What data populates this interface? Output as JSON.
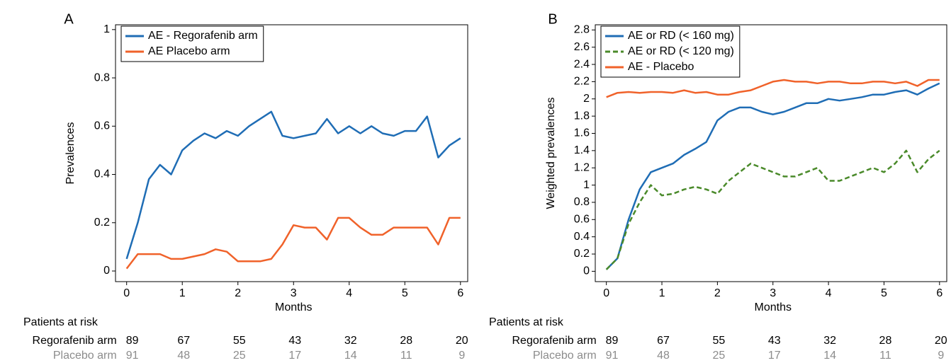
{
  "chart_data": [
    {
      "type": "line",
      "panel": "A",
      "ylabel": "Prevalences",
      "xlabel": "Months",
      "xlim": [
        -0.2,
        6.13
      ],
      "ylim": [
        -0.044,
        1.02
      ],
      "xticks": [
        0,
        1,
        2,
        3,
        4,
        5,
        6
      ],
      "yticks": [
        0,
        0.2,
        0.4,
        0.6,
        0.8,
        1
      ],
      "legend": "top-left",
      "x": [
        0,
        0.2,
        0.4,
        0.6,
        0.8,
        1.0,
        1.2,
        1.4,
        1.6,
        1.8,
        2.0,
        2.2,
        2.4,
        2.6,
        2.8,
        3.0,
        3.2,
        3.4,
        3.6,
        3.8,
        4.0,
        4.2,
        4.4,
        4.6,
        4.8,
        5.0,
        5.2,
        5.4,
        5.6,
        5.8,
        6.0
      ],
      "series": [
        {
          "name": "AE - Regorafenib arm",
          "color": "#1f6db5",
          "dash": false,
          "values": [
            0.05,
            0.2,
            0.38,
            0.44,
            0.4,
            0.5,
            0.54,
            0.57,
            0.55,
            0.58,
            0.56,
            0.6,
            0.63,
            0.66,
            0.56,
            0.55,
            0.56,
            0.57,
            0.63,
            0.57,
            0.6,
            0.57,
            0.6,
            0.57,
            0.56,
            0.58,
            0.58,
            0.64,
            0.47,
            0.52,
            0.55
          ]
        },
        {
          "name": "AE Placebo arm",
          "color": "#f0622a",
          "dash": false,
          "values": [
            0.01,
            0.07,
            0.07,
            0.07,
            0.05,
            0.05,
            0.06,
            0.07,
            0.09,
            0.08,
            0.04,
            0.04,
            0.04,
            0.05,
            0.11,
            0.19,
            0.18,
            0.18,
            0.13,
            0.22,
            0.22,
            0.18,
            0.15,
            0.15,
            0.18,
            0.18,
            0.18,
            0.18,
            0.11,
            0.22,
            0.22
          ]
        }
      ],
      "risk_table": {
        "title": "Patients at risk",
        "rows": [
          {
            "name": "Regorafenib arm",
            "color": "#000000",
            "values": [
              89,
              67,
              55,
              43,
              32,
              28,
              20
            ]
          },
          {
            "name": "Placebo arm",
            "color": "#8c8c8c",
            "values": [
              91,
              48,
              25,
              17,
              14,
              11,
              9
            ]
          }
        ]
      }
    },
    {
      "type": "line",
      "panel": "B",
      "ylabel": "Weighted prevalences",
      "xlabel": "Months",
      "xlim": [
        -0.2,
        6.13
      ],
      "ylim": [
        -0.12,
        2.86
      ],
      "xticks": [
        0,
        1,
        2,
        3,
        4,
        5,
        6
      ],
      "yticks": [
        0,
        0.2,
        0.4,
        0.6,
        0.8,
        1,
        1.2,
        1.4,
        1.6,
        1.8,
        2,
        2.2,
        2.4,
        2.6,
        2.8
      ],
      "legend": "top-left",
      "x": [
        0,
        0.2,
        0.4,
        0.6,
        0.8,
        1.0,
        1.2,
        1.4,
        1.6,
        1.8,
        2.0,
        2.2,
        2.4,
        2.6,
        2.8,
        3.0,
        3.2,
        3.4,
        3.6,
        3.8,
        4.0,
        4.2,
        4.4,
        4.6,
        4.8,
        5.0,
        5.2,
        5.4,
        5.6,
        5.8,
        6.0
      ],
      "series": [
        {
          "name": "AE or RD (< 160 mg)",
          "color": "#1f6db5",
          "dash": false,
          "values": [
            0.02,
            0.15,
            0.6,
            0.95,
            1.15,
            1.2,
            1.25,
            1.35,
            1.42,
            1.5,
            1.75,
            1.85,
            1.9,
            1.9,
            1.85,
            1.82,
            1.85,
            1.9,
            1.95,
            1.95,
            2.0,
            1.98,
            2.0,
            2.02,
            2.05,
            2.05,
            2.08,
            2.1,
            2.05,
            2.12,
            2.18
          ]
        },
        {
          "name": "AE or RD (< 120 mg)",
          "color": "#4a8a2a",
          "dash": true,
          "values": [
            0.02,
            0.15,
            0.55,
            0.8,
            1.0,
            0.88,
            0.9,
            0.95,
            0.98,
            0.95,
            0.9,
            1.05,
            1.15,
            1.25,
            1.2,
            1.15,
            1.1,
            1.1,
            1.15,
            1.2,
            1.05,
            1.05,
            1.1,
            1.15,
            1.2,
            1.15,
            1.25,
            1.4,
            1.15,
            1.3,
            1.4
          ]
        },
        {
          "name": "AE - Placebo",
          "color": "#f0622a",
          "dash": false,
          "values": [
            2.02,
            2.07,
            2.08,
            2.07,
            2.08,
            2.08,
            2.07,
            2.1,
            2.07,
            2.08,
            2.05,
            2.05,
            2.08,
            2.1,
            2.15,
            2.2,
            2.22,
            2.2,
            2.2,
            2.18,
            2.2,
            2.2,
            2.18,
            2.18,
            2.2,
            2.2,
            2.18,
            2.2,
            2.15,
            2.22,
            2.22
          ]
        }
      ],
      "risk_table": {
        "title": "Patients at risk",
        "rows": [
          {
            "name": "Regorafenib arm",
            "color": "#000000",
            "values": [
              89,
              67,
              55,
              43,
              32,
              28,
              20
            ]
          },
          {
            "name": "Placebo arm",
            "color": "#8c8c8c",
            "values": [
              91,
              48,
              25,
              17,
              14,
              11,
              9
            ]
          }
        ]
      }
    }
  ]
}
